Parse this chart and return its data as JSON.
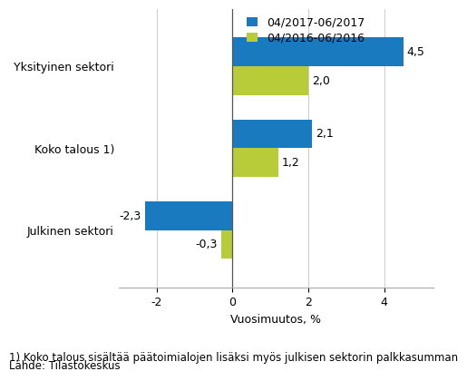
{
  "categories": [
    "Julkinen sektori",
    "Koko talous 1)",
    "Yksityinen sektori"
  ],
  "series_2017": [
    -2.3,
    2.1,
    4.5
  ],
  "series_2016": [
    -0.3,
    1.2,
    2.0
  ],
  "color_2017": "#1a7abf",
  "color_2016": "#b8cc3a",
  "legend_2017": "04/2017-06/2017",
  "legend_2016": "04/2016-06/2016",
  "xlabel": "Vuosimuutos, %",
  "xlim": [
    -3.0,
    5.3
  ],
  "xticks": [
    -2,
    0,
    2,
    4
  ],
  "bar_height": 0.35,
  "footnote1": "1) Koko talous sisältää päätoimialojen lisäksi myös julkisen sektorin palkkasumman",
  "footnote2": "Lähde: Tilastokeskus",
  "label_fontsize": 9,
  "tick_fontsize": 9,
  "footnote_fontsize": 8.5
}
